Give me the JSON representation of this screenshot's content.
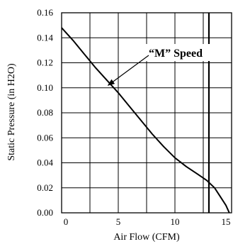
{
  "chart_data": {
    "type": "line",
    "title": "",
    "xlabel": "Air Flow (CFM)",
    "ylabel": "Static Pressure (in H2O)",
    "xlim": [
      0,
      15
    ],
    "ylim": [
      0,
      0.16
    ],
    "x_ticks": [
      0,
      5,
      10,
      15
    ],
    "x_tick_labels": [
      "0",
      "5",
      "10",
      "15"
    ],
    "y_ticks": [
      0,
      0.02,
      0.04,
      0.06,
      0.08,
      0.1,
      0.12,
      0.14,
      0.16
    ],
    "y_tick_labels": [
      "0.00",
      "0.02",
      "0.04",
      "0.06",
      "0.08",
      "0.10",
      "0.12",
      "0.14",
      "0.16"
    ],
    "grid": true,
    "x_grid_step": 2.5,
    "y_grid_step": 0.02,
    "series": [
      {
        "x": [
          0,
          1,
          2,
          3,
          4,
          5,
          6,
          7,
          8,
          9,
          10,
          11,
          12,
          12.8,
          13.5,
          14,
          14.5,
          14.8
        ],
        "y": [
          0.148,
          0.138,
          0.127,
          0.116,
          0.106,
          0.096,
          0.085,
          0.074,
          0.063,
          0.053,
          0.044,
          0.037,
          0.031,
          0.026,
          0.02,
          0.013,
          0.006,
          0.0
        ],
        "color": "#000000"
      }
    ],
    "reference_line": {
      "x": 13,
      "color": "#000000"
    },
    "annotations": [
      {
        "text": "“M” Speed",
        "arrow_to": [
          4.1,
          0.102
        ]
      }
    ]
  }
}
